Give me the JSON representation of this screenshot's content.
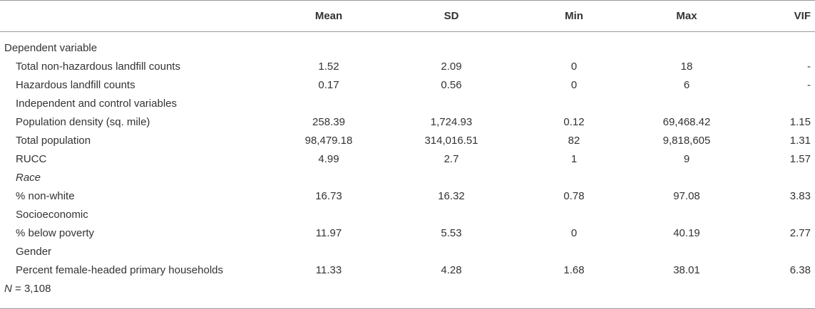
{
  "table": {
    "columns": [
      "Mean",
      "SD",
      "Min",
      "Max",
      "VIF"
    ],
    "rows": [
      {
        "label": "Dependent variable"
      },
      {
        "label": "Total non-hazardous landfill counts",
        "cells": [
          "1.52",
          "2.09",
          "0",
          "18",
          "-"
        ]
      },
      {
        "label": "Hazardous landfill counts",
        "cells": [
          "0.17",
          "0.56",
          "0",
          "6",
          "-"
        ]
      },
      {
        "label": "Independent and control variables"
      },
      {
        "label": "Population density (sq. mile)",
        "cells": [
          "258.39",
          "1,724.93",
          "0.12",
          "69,468.42",
          "1.15"
        ]
      },
      {
        "label": "Total population",
        "cells": [
          "98,479.18",
          "314,016.51",
          "82",
          "9,818,605",
          "1.31"
        ]
      },
      {
        "label": "RUCC",
        "cells": [
          "4.99",
          "2.7",
          "1",
          "9",
          "1.57"
        ]
      },
      {
        "label": "Race"
      },
      {
        "label": "% non-white",
        "cells": [
          "16.73",
          "16.32",
          "0.78",
          "97.08",
          "3.83"
        ]
      },
      {
        "label": "Socioeconomic"
      },
      {
        "label": "% below poverty",
        "cells": [
          "11.97",
          "5.53",
          "0",
          "40.19",
          "2.77"
        ]
      },
      {
        "label": "Gender"
      },
      {
        "label": "Percent female-headed primary households",
        "cells": [
          "11.33",
          "4.28",
          "1.68",
          "38.01",
          "6.38"
        ]
      }
    ],
    "note": {
      "symbol": "N",
      "text": "= 3,108"
    }
  }
}
